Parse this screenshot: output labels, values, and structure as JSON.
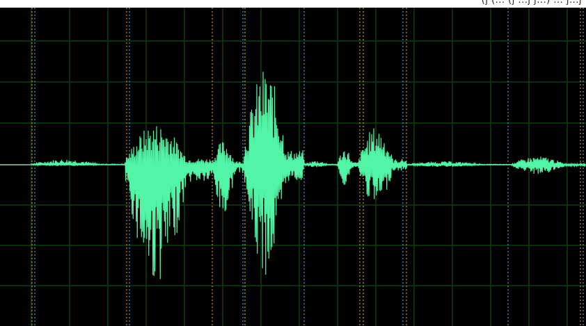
{
  "window": {
    "caption_fragment": "(j  (... (j ...j  j...)  ...  j...j"
  },
  "waveform": {
    "colors": {
      "background": "#000000",
      "grid": "#0e3d12",
      "waveform": "#52f5a5",
      "baseline": "#cc1a1a",
      "marker_orange": "#d88a2a",
      "marker_blue": "#4a9de0",
      "marker_yellow": "#c8b400"
    },
    "markers": [
      {
        "type": "orange"
      },
      {
        "type": "blue"
      },
      {
        "type": "orange"
      },
      {
        "type": "blue"
      },
      {
        "type": "orange"
      },
      {
        "type": "blue"
      },
      {
        "type": "yellow"
      },
      {
        "type": "blue"
      },
      {
        "type": "orange"
      },
      {
        "type": "yellow"
      },
      {
        "type": "blue"
      },
      {
        "type": "orange"
      },
      {
        "type": "blue"
      },
      {
        "type": "orange"
      },
      {
        "type": "blue"
      }
    ]
  }
}
